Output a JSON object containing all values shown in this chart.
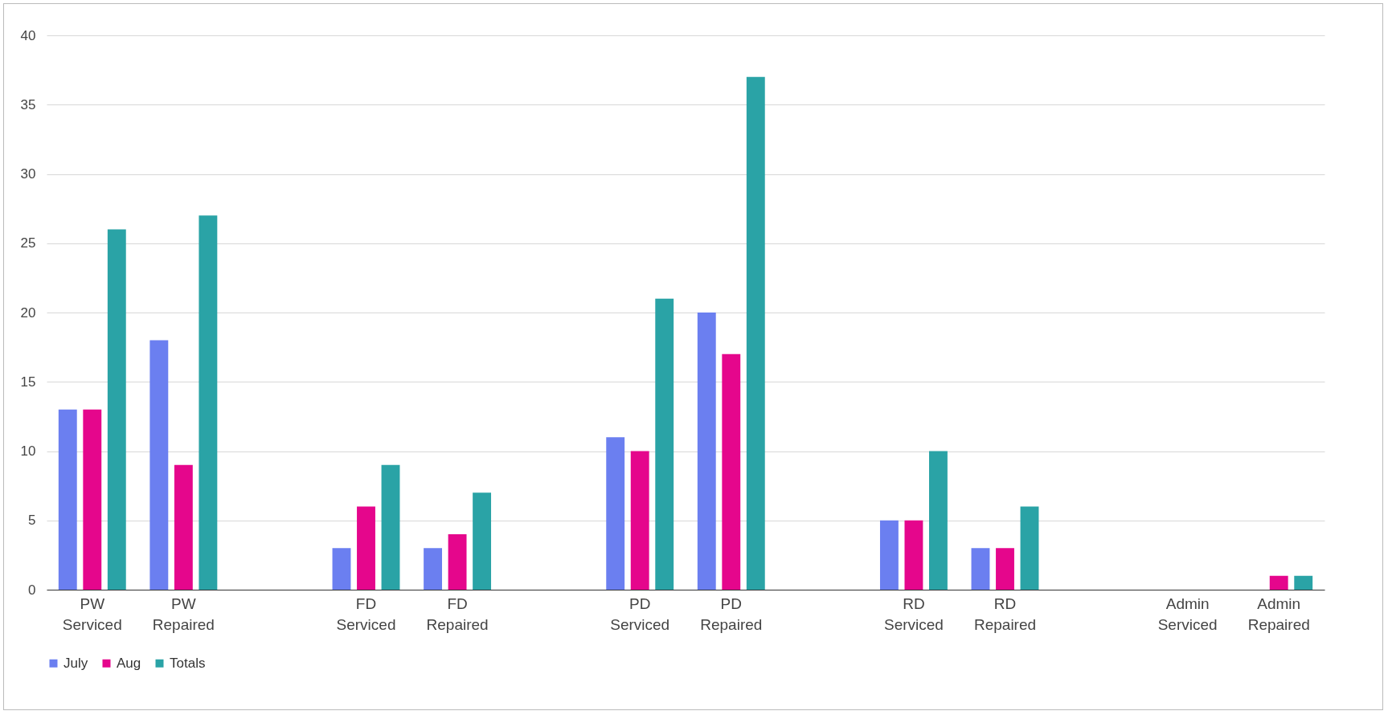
{
  "chart_data": {
    "type": "bar",
    "categories": [
      "PW Serviced",
      "PW Repaired",
      null,
      "FD Serviced",
      "FD Repaired",
      null,
      "PD Serviced",
      "PD Repaired",
      null,
      "RD Serviced",
      "RD Repaired",
      null,
      "Admin Serviced",
      "Admin Repaired"
    ],
    "series": [
      {
        "name": "July",
        "color": "#6b7ff0",
        "values": [
          13,
          18,
          null,
          3,
          3,
          null,
          11,
          20,
          null,
          5,
          3,
          null,
          0,
          0
        ]
      },
      {
        "name": "Aug",
        "color": "#e5068c",
        "values": [
          13,
          9,
          null,
          6,
          4,
          null,
          10,
          17,
          null,
          5,
          3,
          null,
          0,
          1
        ]
      },
      {
        "name": "Totals",
        "color": "#2aa3a6",
        "values": [
          26,
          27,
          null,
          9,
          7,
          null,
          21,
          37,
          null,
          10,
          6,
          null,
          0,
          1
        ]
      }
    ],
    "ylim": [
      0,
      40
    ],
    "yticks": [
      0,
      5,
      10,
      15,
      20,
      25,
      30,
      35,
      40
    ],
    "grid": "y",
    "legend": "bottom"
  }
}
